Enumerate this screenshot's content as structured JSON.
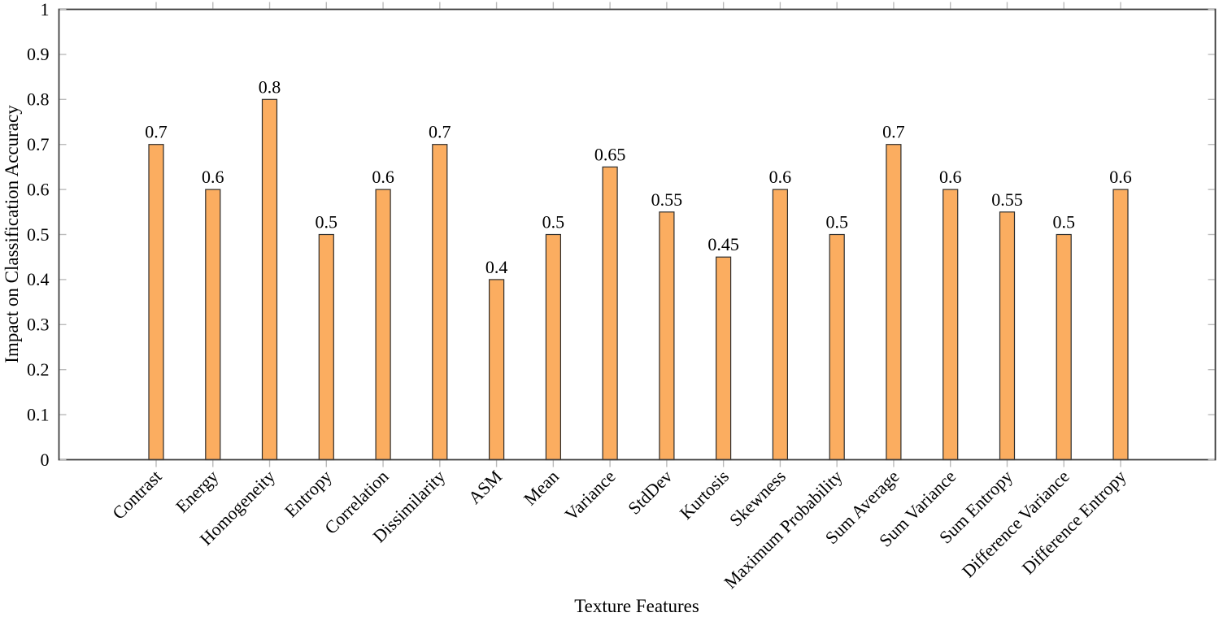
{
  "chart_data": {
    "type": "bar",
    "title": "",
    "xlabel": "Texture Features",
    "ylabel": "Impact on Classification Accuracy",
    "categories": [
      "Contrast",
      "Energy",
      "Homogeneity",
      "Entropy",
      "Correlation",
      "Dissimilarity",
      "ASM",
      "Mean",
      "Variance",
      "StdDev",
      "Kurtosis",
      "Skewness",
      "Maximum Probability",
      "Sum Average",
      "Sum Variance",
      "Sum Entropy",
      "Difference Variance",
      "Difference Entropy"
    ],
    "values": [
      0.7,
      0.6,
      0.8,
      0.5,
      0.6,
      0.7,
      0.4,
      0.5,
      0.65,
      0.55,
      0.45,
      0.6,
      0.5,
      0.7,
      0.6,
      0.55,
      0.5,
      0.6
    ],
    "bar_labels": [
      "0.7",
      "0.6",
      "0.8",
      "0.5",
      "0.6",
      "0.7",
      "0.4",
      "0.5",
      "0.65",
      "0.55",
      "0.45",
      "0.6",
      "0.5",
      "0.7",
      "0.6",
      "0.55",
      "0.5",
      "0.6"
    ],
    "ylim": [
      0,
      1
    ],
    "yticks": [
      0,
      0.1,
      0.2,
      0.3,
      0.4,
      0.5,
      0.6,
      0.7,
      0.8,
      0.9,
      1
    ],
    "ytick_labels": [
      "0",
      "0.1",
      "0.2",
      "0.3",
      "0.4",
      "0.5",
      "0.6",
      "0.7",
      "0.8",
      "0.9",
      "1"
    ],
    "grid": false,
    "xtick_label_rotation_deg": 45,
    "colors": {
      "bar_fill": "#FBAD60",
      "bar_stroke": "#2D2D2D",
      "frame": "#3F3F3F",
      "tick": "#BBBBBB",
      "text": "#000000",
      "background": "#FFFFFF"
    }
  }
}
